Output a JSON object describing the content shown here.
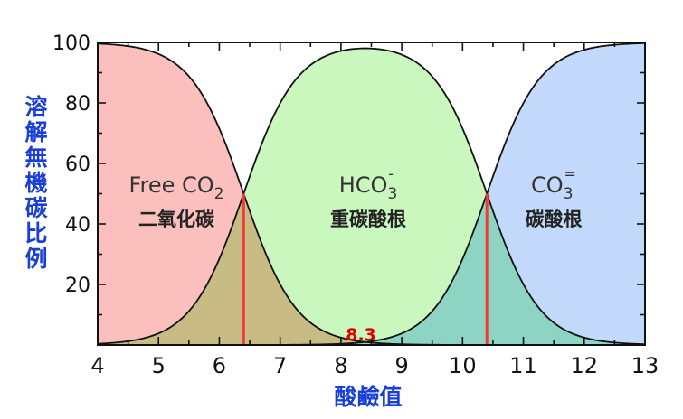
{
  "chart_data": {
    "type": "area",
    "title": "",
    "ylabel": "溶解無機碳比例",
    "xlabel": "酸鹼值",
    "xlim": [
      4,
      13
    ],
    "ylim": [
      0,
      100
    ],
    "x_ticks": [
      "4",
      "5",
      "6",
      "7",
      "8",
      "9",
      "10",
      "11",
      "12",
      "13"
    ],
    "y_ticks": [
      "20",
      "40",
      "60",
      "80",
      "100"
    ],
    "pK1": 6.4,
    "pK2": 10.4,
    "series": [
      {
        "key": "co2",
        "formula_main": "Free CO",
        "formula_sub": "2",
        "formula_sup": "",
        "label": "二氧化碳",
        "color": "#fbbfbd"
      },
      {
        "key": "hco3",
        "formula_main": "HCO",
        "formula_sub": "3",
        "formula_sup": "-",
        "label": "重碳酸根",
        "color": "#c9f7bd"
      },
      {
        "key": "co3",
        "formula_main": "CO",
        "formula_sub": "3",
        "formula_sup": "=",
        "label": "碳酸根",
        "color": "#c2d9fb"
      }
    ],
    "overlap_colors": {
      "co2_hco3": "#c8bc84",
      "hco3_co3": "#8dd4c2"
    },
    "marker_lines": [
      6.4,
      10.4
    ],
    "marker_color": "#f03a3a",
    "annotation": {
      "text": "8.3",
      "x": 8.3
    }
  }
}
